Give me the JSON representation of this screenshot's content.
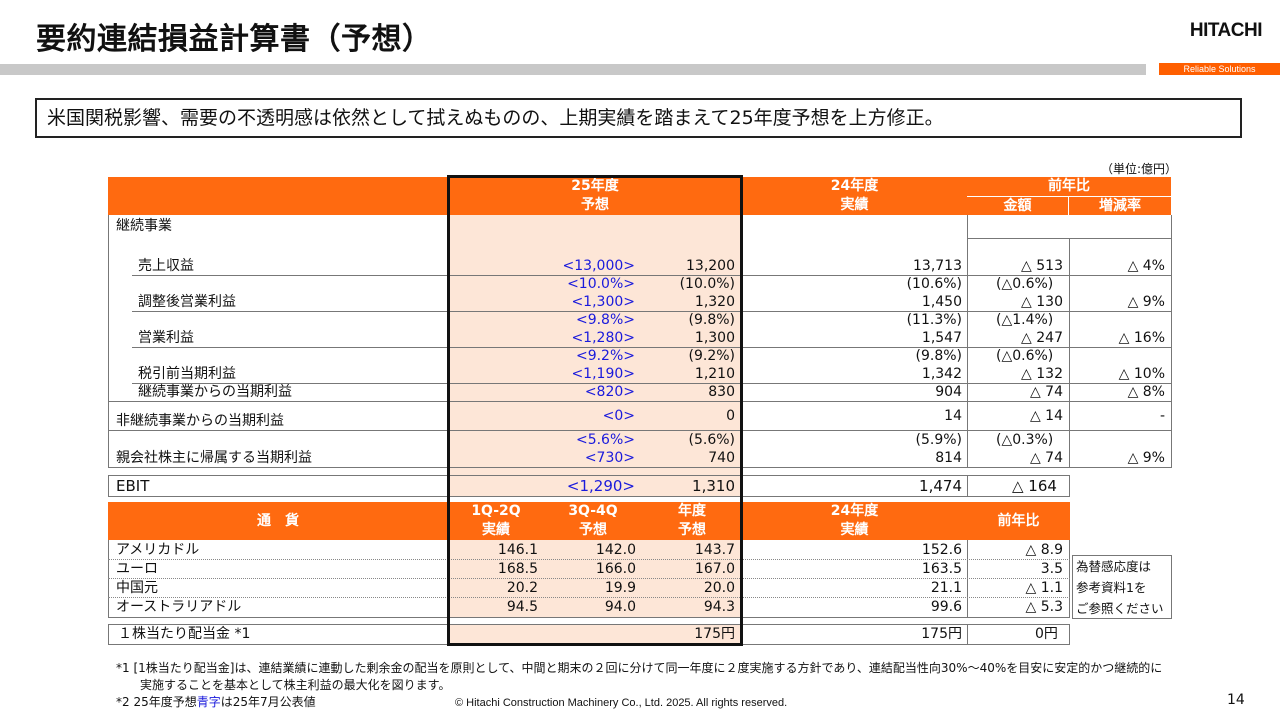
{
  "header": {
    "title": "要約連結損益計算書（予想）",
    "logo": "HITACHI",
    "slogan": "Reliable Solutions"
  },
  "summary": "米国関税影響、需要の不透明感は依然として拭えぬものの、上期実績を踏まえて25年度予想を上方修正。",
  "unit": "（単位:億円）",
  "pl_table": {
    "head": {
      "fy25_line1": "25年度",
      "fy25_line2": "予想",
      "fy24_line1": "24年度",
      "fy24_line2": "実績",
      "yoy": "前年比",
      "amount": "金額",
      "rate": "増減率"
    },
    "section": "継続事業",
    "rows": [
      {
        "label": "売上収益",
        "orig_pct": "",
        "orig": "<13,000>",
        "fc_pct": "",
        "fc": "13,200",
        "prev_pct": "",
        "prev": "13,713",
        "diff_pct": "",
        "diff": "△ 513",
        "rate": "△ 4%"
      },
      {
        "label": "調整後営業利益",
        "orig_pct": "<10.0%>",
        "orig": "<1,300>",
        "fc_pct": "(10.0%)",
        "fc": "1,320",
        "prev_pct": "(10.6%)",
        "prev": "1,450",
        "diff_pct": "(△0.6%)",
        "diff": "△ 130",
        "rate": "△ 9%"
      },
      {
        "label": "営業利益",
        "orig_pct": "<9.8%>",
        "orig": "<1,280>",
        "fc_pct": "(9.8%)",
        "fc": "1,300",
        "prev_pct": "(11.3%)",
        "prev": "1,547",
        "diff_pct": "(△1.4%)",
        "diff": "△ 247",
        "rate": "△ 16%"
      },
      {
        "label": "税引前当期利益",
        "orig_pct": "<9.2%>",
        "orig": "<1,190>",
        "fc_pct": "(9.2%)",
        "fc": "1,210",
        "prev_pct": "(9.8%)",
        "prev": "1,342",
        "diff_pct": "(△0.6%)",
        "diff": "△ 132",
        "rate": "△ 10%"
      },
      {
        "label": "継続事業からの当期利益",
        "orig_pct": "",
        "orig": "<820>",
        "fc_pct": "",
        "fc": "830",
        "prev_pct": "",
        "prev": "904",
        "diff_pct": "",
        "diff": "△ 74",
        "rate": "△ 8%"
      },
      {
        "label": "非継続事業からの当期利益",
        "orig_pct": "",
        "orig": "<0>",
        "fc_pct": "",
        "fc": "0",
        "prev_pct": "",
        "prev": "14",
        "diff_pct": "",
        "diff": "△ 14",
        "rate": "-"
      },
      {
        "label": "親会社株主に帰属する当期利益",
        "orig_pct": "<5.6%>",
        "orig": "<730>",
        "fc_pct": "(5.6%)",
        "fc": "740",
        "prev_pct": "(5.9%)",
        "prev": "814",
        "diff_pct": "(△0.3%)",
        "diff": "△ 74",
        "rate": "△ 9%"
      }
    ],
    "ebit": {
      "label": "EBIT",
      "orig": "<1,290>",
      "fc": "1,310",
      "prev": "1,474",
      "diff": "△ 164"
    }
  },
  "fx_table": {
    "head": {
      "currency": "通　貨",
      "h1_line1": "1Q-2Q",
      "h1_line2": "実績",
      "h2_line1": "3Q-4Q",
      "h2_line2": "予想",
      "fy_line1": "年度",
      "fy_line2": "予想",
      "fy24_line1": "24年度",
      "fy24_line2": "実績",
      "yoy": "前年比"
    },
    "rows": [
      {
        "label": "アメリカドル",
        "h1": "146.1",
        "h2": "142.0",
        "fy": "143.7",
        "prev": "152.6",
        "diff": "△ 8.9"
      },
      {
        "label": "ユーロ",
        "h1": "168.5",
        "h2": "166.0",
        "fy": "167.0",
        "prev": "163.5",
        "diff": "3.5"
      },
      {
        "label": "中国元",
        "h1": "20.2",
        "h2": "19.9",
        "fy": "20.0",
        "prev": "21.1",
        "diff": "△ 1.1"
      },
      {
        "label": "オーストラリアドル",
        "h1": "94.5",
        "h2": "94.0",
        "fy": "94.3",
        "prev": "99.6",
        "diff": "△ 5.3"
      }
    ],
    "side_note": [
      "為替感応度は",
      "参考資料1を",
      "ご参照ください"
    ]
  },
  "dividend": {
    "label": "１株当たり配当金 *1",
    "fc": "175円",
    "prev": "175円",
    "diff": "0円"
  },
  "footnotes": {
    "n1_line1": "*1 [1株当たり配当金]は、連結業績に連動した剰余金の配当を原則として、中間と期末の２回に分けて同一年度に２度実施する方針であり、連結配当性向30%～40%を目安に安定的かつ継続的に",
    "n1_line2": "実施することを基本として株主利益の最大化を図ります。",
    "n2_prefix": "*2 25年度予想",
    "n2_blue": "青字",
    "n2_suffix": "は25年7月公表値"
  },
  "footer": {
    "copyright": "© Hitachi Construction Machinery Co., Ltd. 2025. All rights reserved.",
    "page": "14"
  },
  "colors": {
    "orange": "#ff6a10",
    "peach": "#fde6d7",
    "blue": "#1a1adc",
    "gray_bar": "#c8c8c8"
  }
}
